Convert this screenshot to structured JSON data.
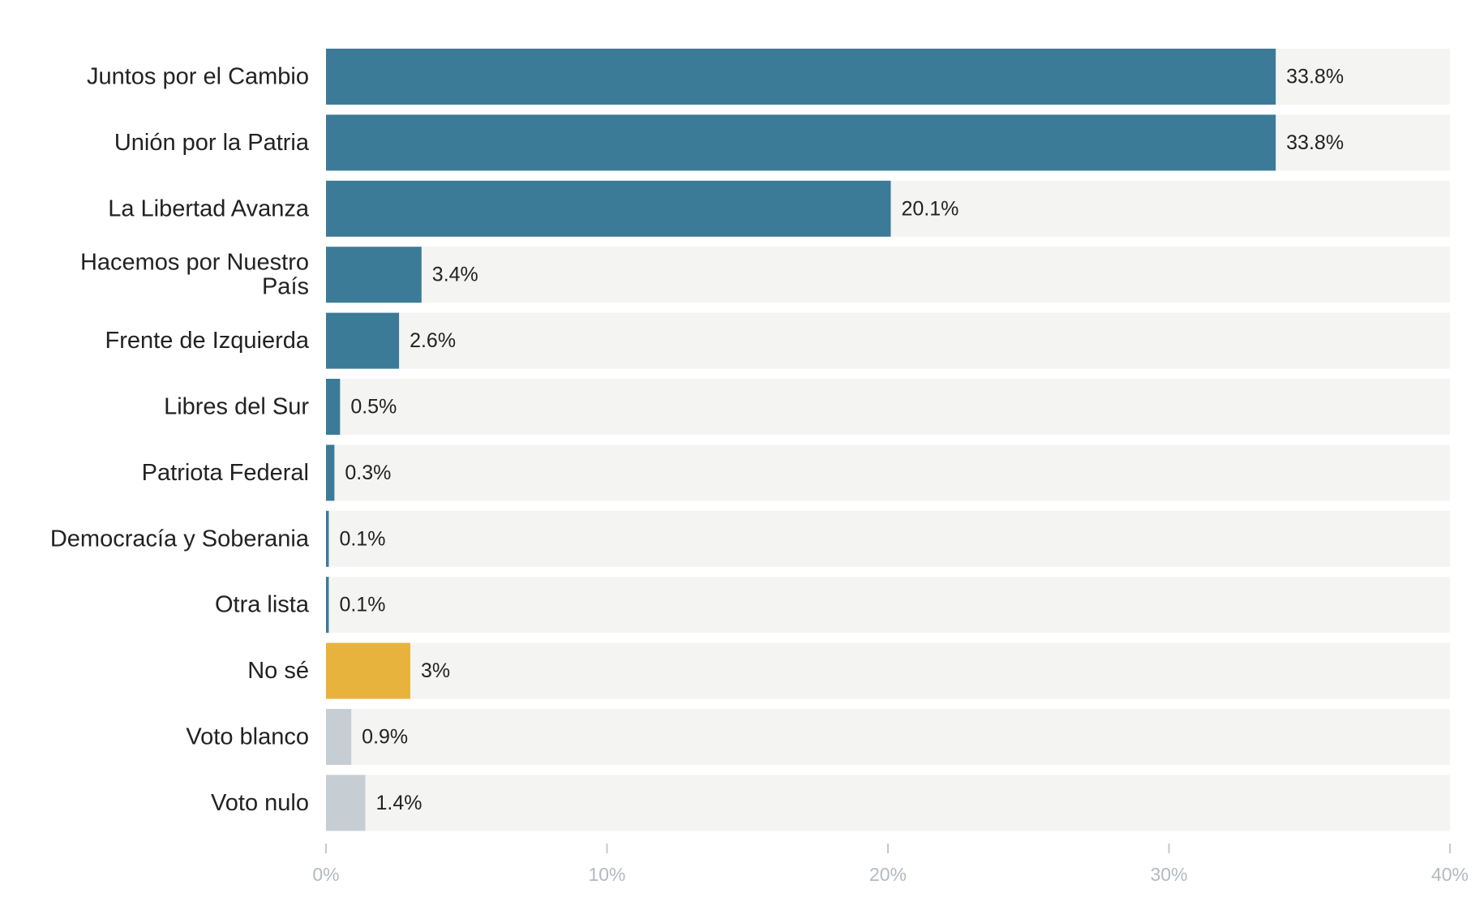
{
  "chart_data": {
    "type": "bar",
    "orientation": "horizontal",
    "categories": [
      "Juntos por el Cambio",
      "Unión por la Patria",
      "La Libertad Avanza",
      "Hacemos por Nuestro País",
      "Frente de Izquierda",
      "Libres del Sur",
      "Patriota Federal",
      "Democracía y Soberania",
      "Otra lista",
      "No sé",
      "Voto blanco",
      "Voto nulo"
    ],
    "category_lines": [
      [
        "Juntos por el Cambio"
      ],
      [
        "Unión por la Patria"
      ],
      [
        "La Libertad Avanza"
      ],
      [
        "Hacemos por Nuestro",
        "País"
      ],
      [
        "Frente de Izquierda"
      ],
      [
        "Libres del Sur"
      ],
      [
        "Patriota Federal"
      ],
      [
        "Democracía y Soberania"
      ],
      [
        "Otra lista"
      ],
      [
        "No sé"
      ],
      [
        "Voto blanco"
      ],
      [
        "Voto nulo"
      ]
    ],
    "values": [
      33.8,
      33.8,
      20.1,
      3.4,
      2.6,
      0.5,
      0.3,
      0.1,
      0.1,
      3,
      0.9,
      1.4
    ],
    "value_labels": [
      "33.8%",
      "33.8%",
      "20.1%",
      "3.4%",
      "2.6%",
      "0.5%",
      "0.3%",
      "0.1%",
      "0.1%",
      "3%",
      "0.9%",
      "1.4%"
    ],
    "bar_colors": [
      "#3c7b97",
      "#3c7b97",
      "#3c7b97",
      "#3c7b97",
      "#3c7b97",
      "#3c7b97",
      "#3c7b97",
      "#3c7b97",
      "#3c7b97",
      "#e8b33c",
      "#c6ced4",
      "#c6ced4"
    ],
    "track_color": "#f4f4f2",
    "xlim": [
      0,
      40
    ],
    "xticks": [
      0,
      10,
      20,
      30,
      40
    ],
    "xtick_labels": [
      "0%",
      "10%",
      "20%",
      "30%",
      "40%"
    ],
    "grid": false,
    "title": "",
    "xlabel": "",
    "ylabel": ""
  }
}
